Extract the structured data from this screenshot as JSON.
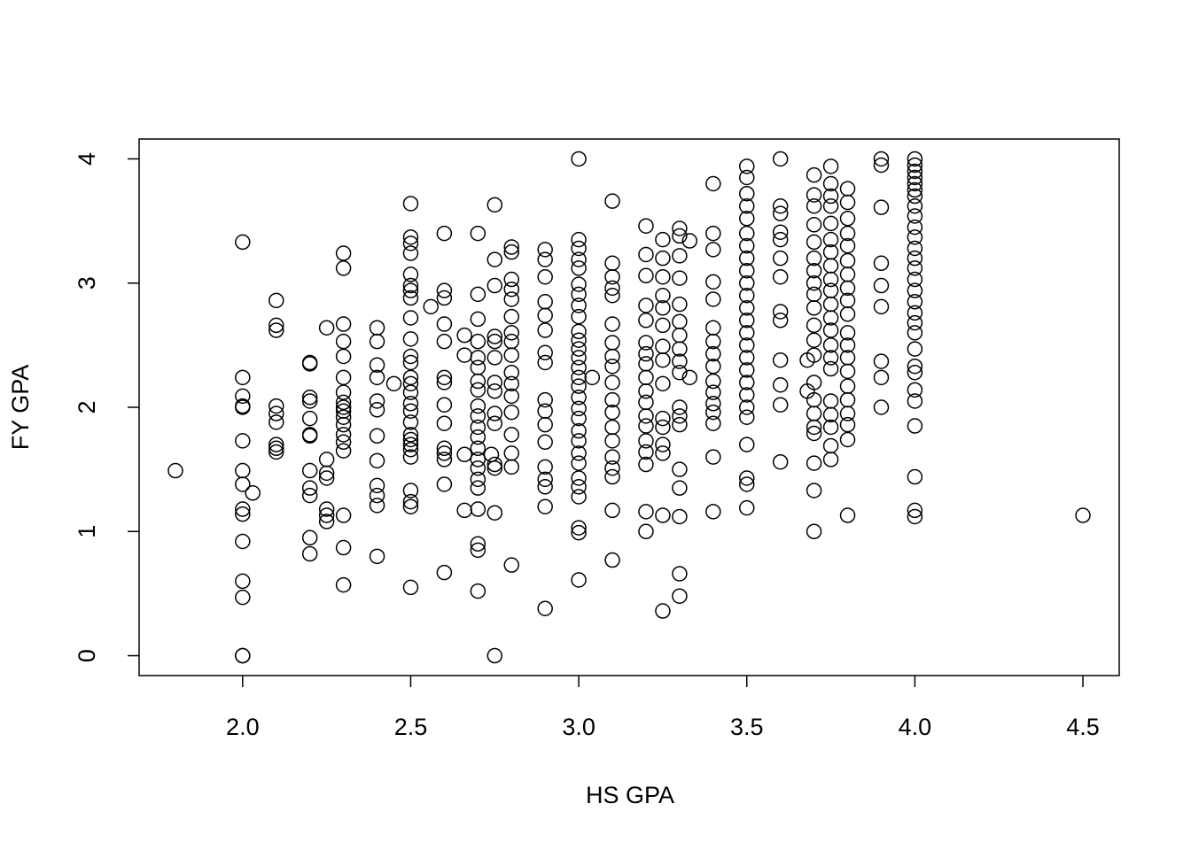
{
  "chart_data": {
    "type": "scatter",
    "x_label": "HS GPA",
    "y_label": "FY GPA",
    "xlim": [
      1.692,
      4.608
    ],
    "ylim": [
      -0.16,
      4.16
    ],
    "xticks": [
      {
        "value": 2,
        "label": "2.0"
      },
      2.5,
      {
        "value": 3,
        "label": "3.0"
      },
      3.5,
      {
        "value": 4,
        "label": "4.0"
      },
      4.5
    ],
    "yticks": [
      0,
      1,
      2,
      3,
      4
    ],
    "grid": false,
    "color": "#000000",
    "x": [
      1.8,
      2,
      2,
      2,
      2,
      2,
      2,
      2,
      2,
      2,
      2,
      2,
      2,
      2,
      2,
      2,
      2.03,
      2.1,
      2.1,
      2.1,
      2.1,
      2.1,
      2.1,
      2.1,
      2.1,
      2.1,
      2.2,
      2.2,
      2.2,
      2.2,
      2.2,
      2.2,
      2.2,
      2.2,
      2.2,
      2.2,
      2.2,
      2.2,
      2.25,
      2.25,
      2.25,
      2.25,
      2.25,
      2.25,
      2.25,
      2.3,
      2.3,
      2.3,
      2.3,
      2.3,
      2.3,
      2.3,
      2.3,
      2.3,
      2.3,
      2.3,
      2.3,
      2.3,
      2.3,
      2.3,
      2.3,
      2.3,
      2.3,
      2.4,
      2.4,
      2.4,
      2.4,
      2.4,
      2.4,
      2.4,
      2.4,
      2.4,
      2.4,
      2.4,
      2.4,
      2.45,
      2.5,
      2.5,
      2.5,
      2.5,
      2.5,
      2.5,
      2.5,
      2.5,
      2.5,
      2.5,
      2.5,
      2.5,
      2.5,
      2.5,
      2.5,
      2.5,
      2.5,
      2.5,
      2.5,
      2.5,
      2.5,
      2.5,
      2.5,
      2.5,
      2.5,
      2.5,
      2.5,
      2.56,
      2.6,
      2.6,
      2.6,
      2.6,
      2.6,
      2.6,
      2.6,
      2.6,
      2.6,
      2.6,
      2.6,
      2.6,
      2.6,
      2.6,
      2.66,
      2.66,
      2.66,
      2.66,
      2.7,
      2.7,
      2.7,
      2.7,
      2.7,
      2.7,
      2.7,
      2.7,
      2.7,
      2.7,
      2.7,
      2.7,
      2.7,
      2.7,
      2.7,
      2.7,
      2.7,
      2.7,
      2.7,
      2.7,
      2.7,
      2.74,
      2.75,
      2.75,
      2.75,
      2.75,
      2.75,
      2.75,
      2.75,
      2.75,
      2.75,
      2.75,
      2.75,
      2.75,
      2.75,
      2.75,
      2.8,
      2.8,
      2.8,
      2.8,
      2.8,
      2.8,
      2.8,
      2.8,
      2.8,
      2.8,
      2.8,
      2.8,
      2.8,
      2.8,
      2.8,
      2.8,
      2.8,
      2.9,
      2.9,
      2.9,
      2.9,
      2.9,
      2.9,
      2.9,
      2.9,
      2.9,
      2.9,
      2.9,
      2.9,
      2.9,
      2.9,
      2.9,
      2.9,
      2.9,
      3,
      3,
      3,
      3,
      3,
      3,
      3,
      3,
      3,
      3,
      3,
      3,
      3,
      3,
      3,
      3,
      3,
      3,
      3,
      3,
      3,
      3,
      3,
      3,
      3,
      3,
      3,
      3,
      3,
      3.04,
      3.1,
      3.1,
      3.1,
      3.1,
      3.1,
      3.1,
      3.1,
      3.1,
      3.1,
      3.1,
      3.1,
      3.1,
      3.1,
      3.1,
      3.1,
      3.1,
      3.1,
      3.1,
      3.1,
      3.2,
      3.2,
      3.2,
      3.2,
      3.2,
      3.2,
      3.2,
      3.2,
      3.2,
      3.2,
      3.2,
      3.2,
      3.2,
      3.2,
      3.2,
      3.2,
      3.2,
      3.2,
      3.25,
      3.25,
      3.25,
      3.25,
      3.25,
      3.25,
      3.25,
      3.25,
      3.25,
      3.25,
      3.25,
      3.25,
      3.25,
      3.25,
      3.25,
      3.3,
      3.3,
      3.3,
      3.3,
      3.3,
      3.3,
      3.3,
      3.3,
      3.3,
      3.3,
      3.3,
      3.3,
      3.3,
      3.3,
      3.3,
      3.3,
      3.3,
      3.3,
      3.33,
      3.33,
      3.4,
      3.4,
      3.4,
      3.4,
      3.4,
      3.4,
      3.4,
      3.4,
      3.4,
      3.4,
      3.4,
      3.4,
      3.4,
      3.4,
      3.4,
      3.4,
      3.5,
      3.5,
      3.5,
      3.5,
      3.5,
      3.5,
      3.5,
      3.5,
      3.5,
      3.5,
      3.5,
      3.5,
      3.5,
      3.5,
      3.5,
      3.5,
      3.5,
      3.5,
      3.5,
      3.5,
      3.5,
      3.5,
      3.5,
      3.5,
      3.5,
      3.6,
      3.6,
      3.6,
      3.6,
      3.6,
      3.6,
      3.6,
      3.6,
      3.6,
      3.6,
      3.6,
      3.6,
      3.6,
      3.68,
      3.68,
      3.7,
      3.7,
      3.7,
      3.7,
      3.7,
      3.7,
      3.7,
      3.7,
      3.7,
      3.7,
      3.7,
      3.7,
      3.7,
      3.7,
      3.7,
      3.7,
      3.7,
      3.7,
      3.7,
      3.7,
      3.7,
      3.75,
      3.75,
      3.75,
      3.75,
      3.75,
      3.75,
      3.75,
      3.75,
      3.75,
      3.75,
      3.75,
      3.75,
      3.75,
      3.75,
      3.75,
      3.75,
      3.75,
      3.75,
      3.75,
      3.75,
      3.75,
      3.8,
      3.8,
      3.8,
      3.8,
      3.8,
      3.8,
      3.8,
      3.8,
      3.8,
      3.8,
      3.8,
      3.8,
      3.8,
      3.8,
      3.8,
      3.8,
      3.8,
      3.8,
      3.8,
      3.8,
      3.9,
      3.9,
      3.9,
      3.9,
      3.9,
      3.9,
      3.9,
      3.9,
      3.9,
      4,
      4,
      4,
      4,
      4,
      4,
      4,
      4,
      4,
      4,
      4,
      4,
      4,
      4,
      4,
      4,
      4,
      4,
      4,
      4,
      4,
      4,
      4,
      4,
      4,
      4,
      4,
      4,
      4,
      4.5
    ],
    "values": [
      1.49,
      3.33,
      2.24,
      2.09,
      2.01,
      2,
      1.73,
      1.49,
      1.38,
      1.18,
      1.14,
      0.92,
      0.6,
      0.47,
      0,
      0,
      1.31,
      2.86,
      2.66,
      2.62,
      2.01,
      1.95,
      1.88,
      1.7,
      1.67,
      1.64,
      2.36,
      2.35,
      2.08,
      2.05,
      1.91,
      1.78,
      1.77,
      1.49,
      1.35,
      1.29,
      0.95,
      0.82,
      2.64,
      1.58,
      1.47,
      1.43,
      1.18,
      1.13,
      1.08,
      3.24,
      3.12,
      2.67,
      2.53,
      2.41,
      2.24,
      2.12,
      2.04,
      2,
      1.97,
      1.92,
      1.86,
      1.78,
      1.72,
      1.65,
      1.13,
      0.87,
      0.57,
      2.64,
      2.53,
      2.34,
      2.24,
      2.05,
      1.98,
      1.77,
      1.57,
      1.37,
      1.29,
      1.21,
      0.8,
      2.19,
      3.64,
      3.37,
      3.32,
      3.24,
      3.07,
      2.98,
      2.94,
      2.88,
      2.72,
      2.55,
      2.41,
      2.36,
      2.24,
      2.19,
      2.12,
      2.03,
      1.97,
      1.88,
      1.78,
      1.74,
      1.7,
      1.66,
      1.6,
      1.33,
      1.24,
      1.2,
      0.55,
      2.81,
      3.4,
      2.94,
      2.88,
      2.67,
      2.53,
      2.24,
      2.2,
      2.02,
      1.87,
      1.67,
      1.63,
      1.58,
      1.38,
      0.67,
      2.58,
      2.42,
      1.62,
      1.17,
      3.4,
      2.91,
      2.71,
      2.53,
      2.4,
      2.32,
      2.21,
      2.14,
      2.01,
      1.93,
      1.84,
      1.76,
      1.67,
      1.58,
      1.51,
      1.42,
      1.35,
      1.18,
      0.9,
      0.85,
      0.52,
      1.62,
      3.63,
      3.19,
      2.98,
      2.57,
      2.53,
      2.4,
      2.2,
      2.13,
      1.95,
      1.87,
      1.54,
      1.51,
      1.15,
      0,
      3.29,
      3.25,
      3.03,
      2.95,
      2.87,
      2.73,
      2.6,
      2.53,
      2.42,
      2.28,
      2.19,
      2.09,
      1.96,
      1.78,
      1.63,
      1.52,
      0.73,
      3.27,
      3.19,
      3.05,
      2.85,
      2.74,
      2.62,
      2.44,
      2.36,
      2.06,
      1.97,
      1.86,
      1.72,
      1.52,
      1.42,
      1.36,
      1.2,
      0.38,
      4,
      3.35,
      3.28,
      3.19,
      3.12,
      2.99,
      2.91,
      2.82,
      2.73,
      2.61,
      2.54,
      2.47,
      2.4,
      2.32,
      2.24,
      2.17,
      2.08,
      1.99,
      1.91,
      1.81,
      1.73,
      1.63,
      1.55,
      1.43,
      1.36,
      1.28,
      1.03,
      0.99,
      0.61,
      2.24,
      3.66,
      3.16,
      3.05,
      2.96,
      2.9,
      2.67,
      2.52,
      2.41,
      2.33,
      2.2,
      2.06,
      1.96,
      1.84,
      1.73,
      1.6,
      1.51,
      1.44,
      1.17,
      0.77,
      3.46,
      3.23,
      3.06,
      2.82,
      2.7,
      2.52,
      2.43,
      2.35,
      2.24,
      2.13,
      2.04,
      1.93,
      1.85,
      1.73,
      1.64,
      1.54,
      1.16,
      1,
      3.35,
      3.2,
      3.05,
      2.9,
      2.8,
      2.66,
      2.49,
      2.38,
      2.19,
      1.91,
      1.84,
      1.7,
      1.63,
      1.13,
      0.36,
      3.44,
      3.38,
      3.22,
      3.04,
      2.83,
      2.69,
      2.58,
      2.47,
      2.37,
      2.28,
      2,
      1.93,
      1.86,
      1.5,
      1.35,
      1.12,
      0.66,
      0.48,
      3.34,
      2.24,
      3.8,
      3.4,
      3.27,
      3.01,
      2.87,
      2.64,
      2.53,
      2.43,
      2.33,
      2.21,
      2.12,
      2.03,
      1.96,
      1.87,
      1.6,
      1.16,
      3.94,
      3.85,
      3.72,
      3.62,
      3.52,
      3.4,
      3.3,
      3.2,
      3.1,
      3,
      2.9,
      2.8,
      2.7,
      2.6,
      2.5,
      2.4,
      2.3,
      2.2,
      2.1,
      2,
      1.92,
      1.7,
      1.43,
      1.38,
      1.19,
      4,
      3.62,
      3.56,
      3.41,
      3.35,
      3.2,
      3.05,
      2.77,
      2.7,
      2.38,
      2.18,
      2.02,
      1.56,
      2.38,
      2.13,
      3.87,
      3.71,
      3.62,
      3.47,
      3.33,
      3.2,
      3.1,
      3,
      2.91,
      2.8,
      2.66,
      2.54,
      2.42,
      2.2,
      2.06,
      1.95,
      1.84,
      1.79,
      1.55,
      1.33,
      1,
      3.94,
      3.8,
      3.7,
      3.62,
      3.48,
      3.35,
      3.25,
      3.14,
      3.03,
      2.94,
      2.83,
      2.72,
      2.62,
      2.5,
      2.4,
      2.31,
      2.05,
      1.94,
      1.84,
      1.69,
      1.58,
      3.76,
      3.65,
      3.52,
      3.4,
      3.3,
      3.18,
      3.07,
      2.96,
      2.86,
      2.75,
      2.6,
      2.5,
      2.4,
      2.29,
      2.17,
      2.06,
      1.95,
      1.86,
      1.74,
      1.13,
      4,
      3.95,
      3.61,
      3.16,
      2.98,
      2.81,
      2.37,
      2.24,
      2,
      4,
      3.95,
      3.9,
      3.85,
      3.8,
      3.75,
      3.7,
      3.62,
      3.54,
      3.45,
      3.37,
      3.28,
      3.2,
      3.12,
      3.03,
      2.94,
      2.85,
      2.76,
      2.68,
      2.6,
      2.47,
      2.33,
      2.28,
      2.14,
      2.05,
      1.85,
      1.44,
      1.17,
      1.12,
      1.13
    ]
  }
}
